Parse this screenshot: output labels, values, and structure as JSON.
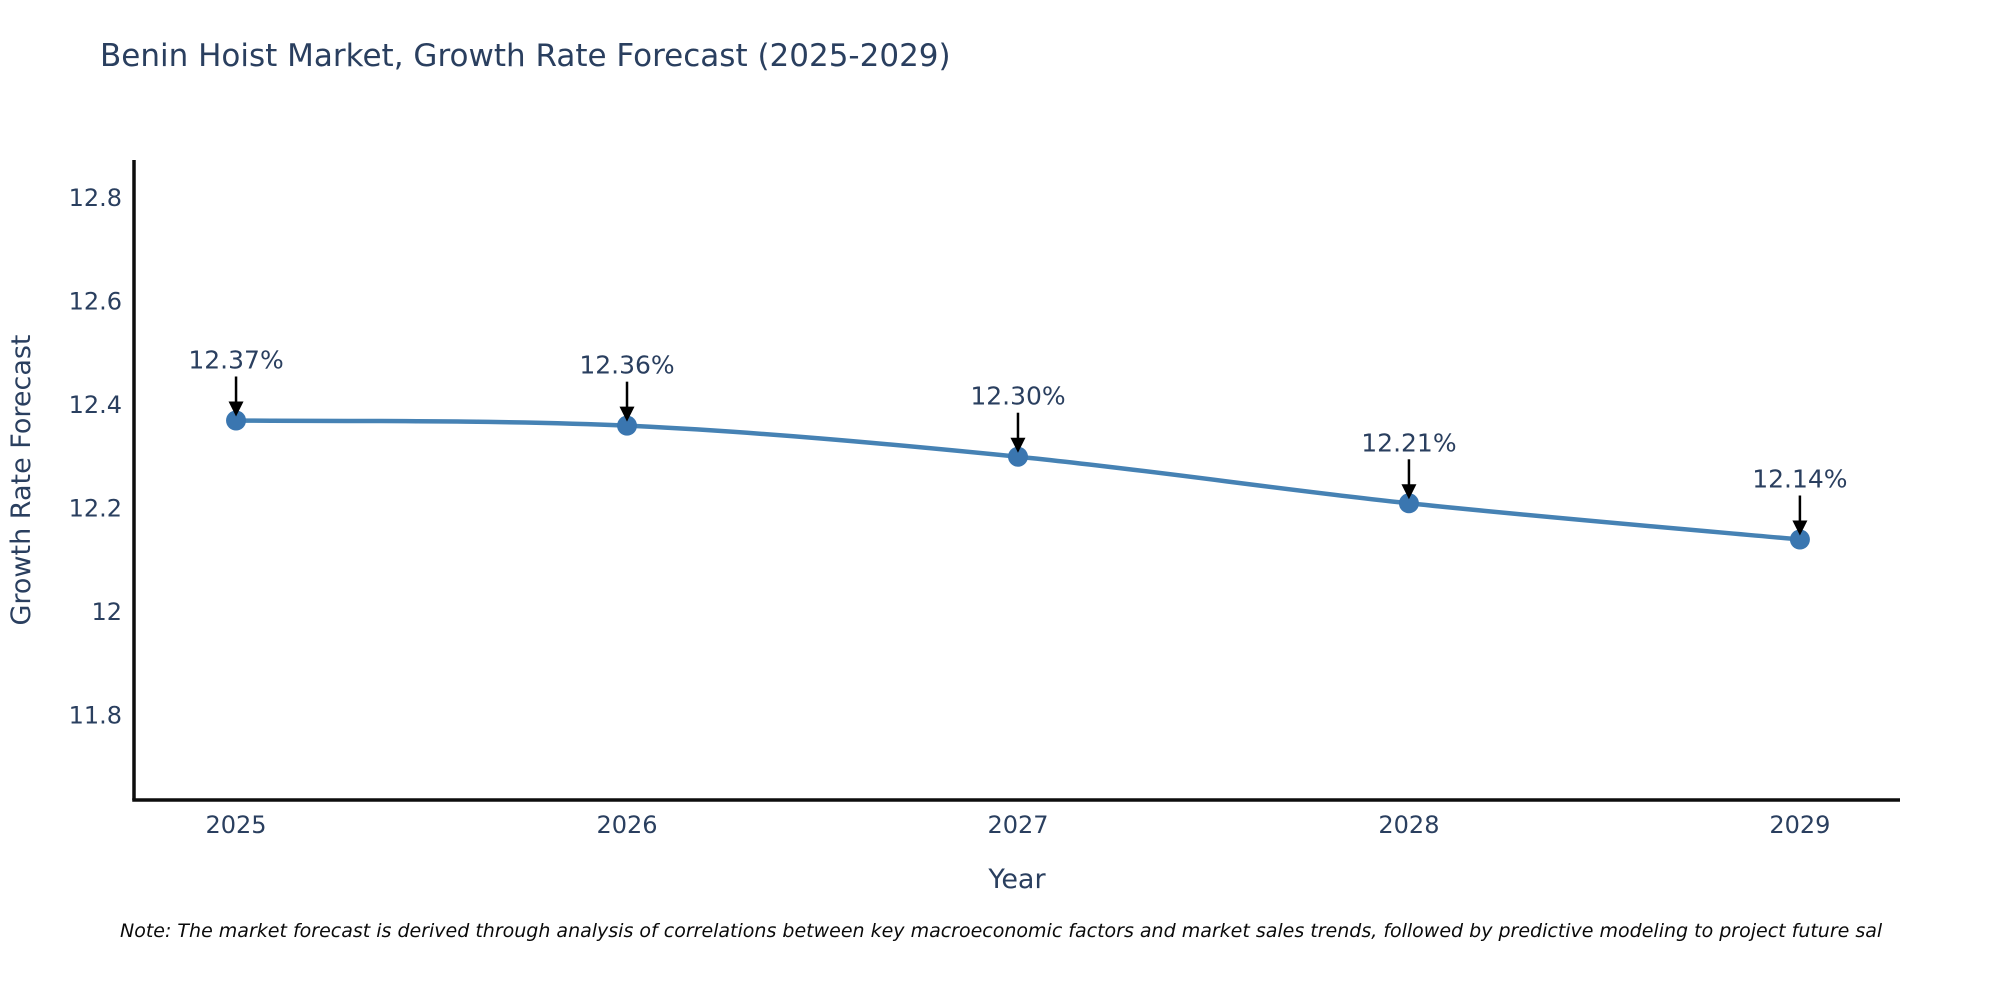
{
  "title": "Benin Hoist Market, Growth Rate Forecast (2025-2029)",
  "note": "Note: The market forecast is derived through analysis of correlations between key macroeconomic factors and market sales trends, followed by predictive modeling to project future sal",
  "chart_data": {
    "type": "line",
    "title": "Benin Hoist Market, Growth Rate Forecast (2025-2029)",
    "xlabel": "Year",
    "ylabel": "Growth Rate Forecast",
    "x": [
      2025,
      2026,
      2027,
      2028,
      2029
    ],
    "series": [
      {
        "name": "Growth Rate Forecast",
        "values": [
          12.37,
          12.36,
          12.3,
          12.21,
          12.14
        ]
      }
    ],
    "point_labels": [
      "12.37%",
      "12.36%",
      "12.30%",
      "12.21%",
      "12.14%"
    ],
    "xtick_labels": [
      "2025",
      "2026",
      "2027",
      "2028",
      "2029"
    ],
    "ytick_values": [
      11.8,
      12.0,
      12.2,
      12.4,
      12.6,
      12.8
    ],
    "ytick_labels": [
      "11.8",
      "12",
      "12.2",
      "12.4",
      "12.6",
      "12.8"
    ],
    "xlim": [
      2024.739,
      2029.256
    ],
    "ylim": [
      11.6366,
      12.8734
    ],
    "grid": false,
    "legend_position": "none",
    "line_color": "#4682b4",
    "marker_color": "#3a76b0",
    "arrow_color": "#000000",
    "axis_color": "#0d0d0d",
    "text_color": "#2a3f5f"
  }
}
